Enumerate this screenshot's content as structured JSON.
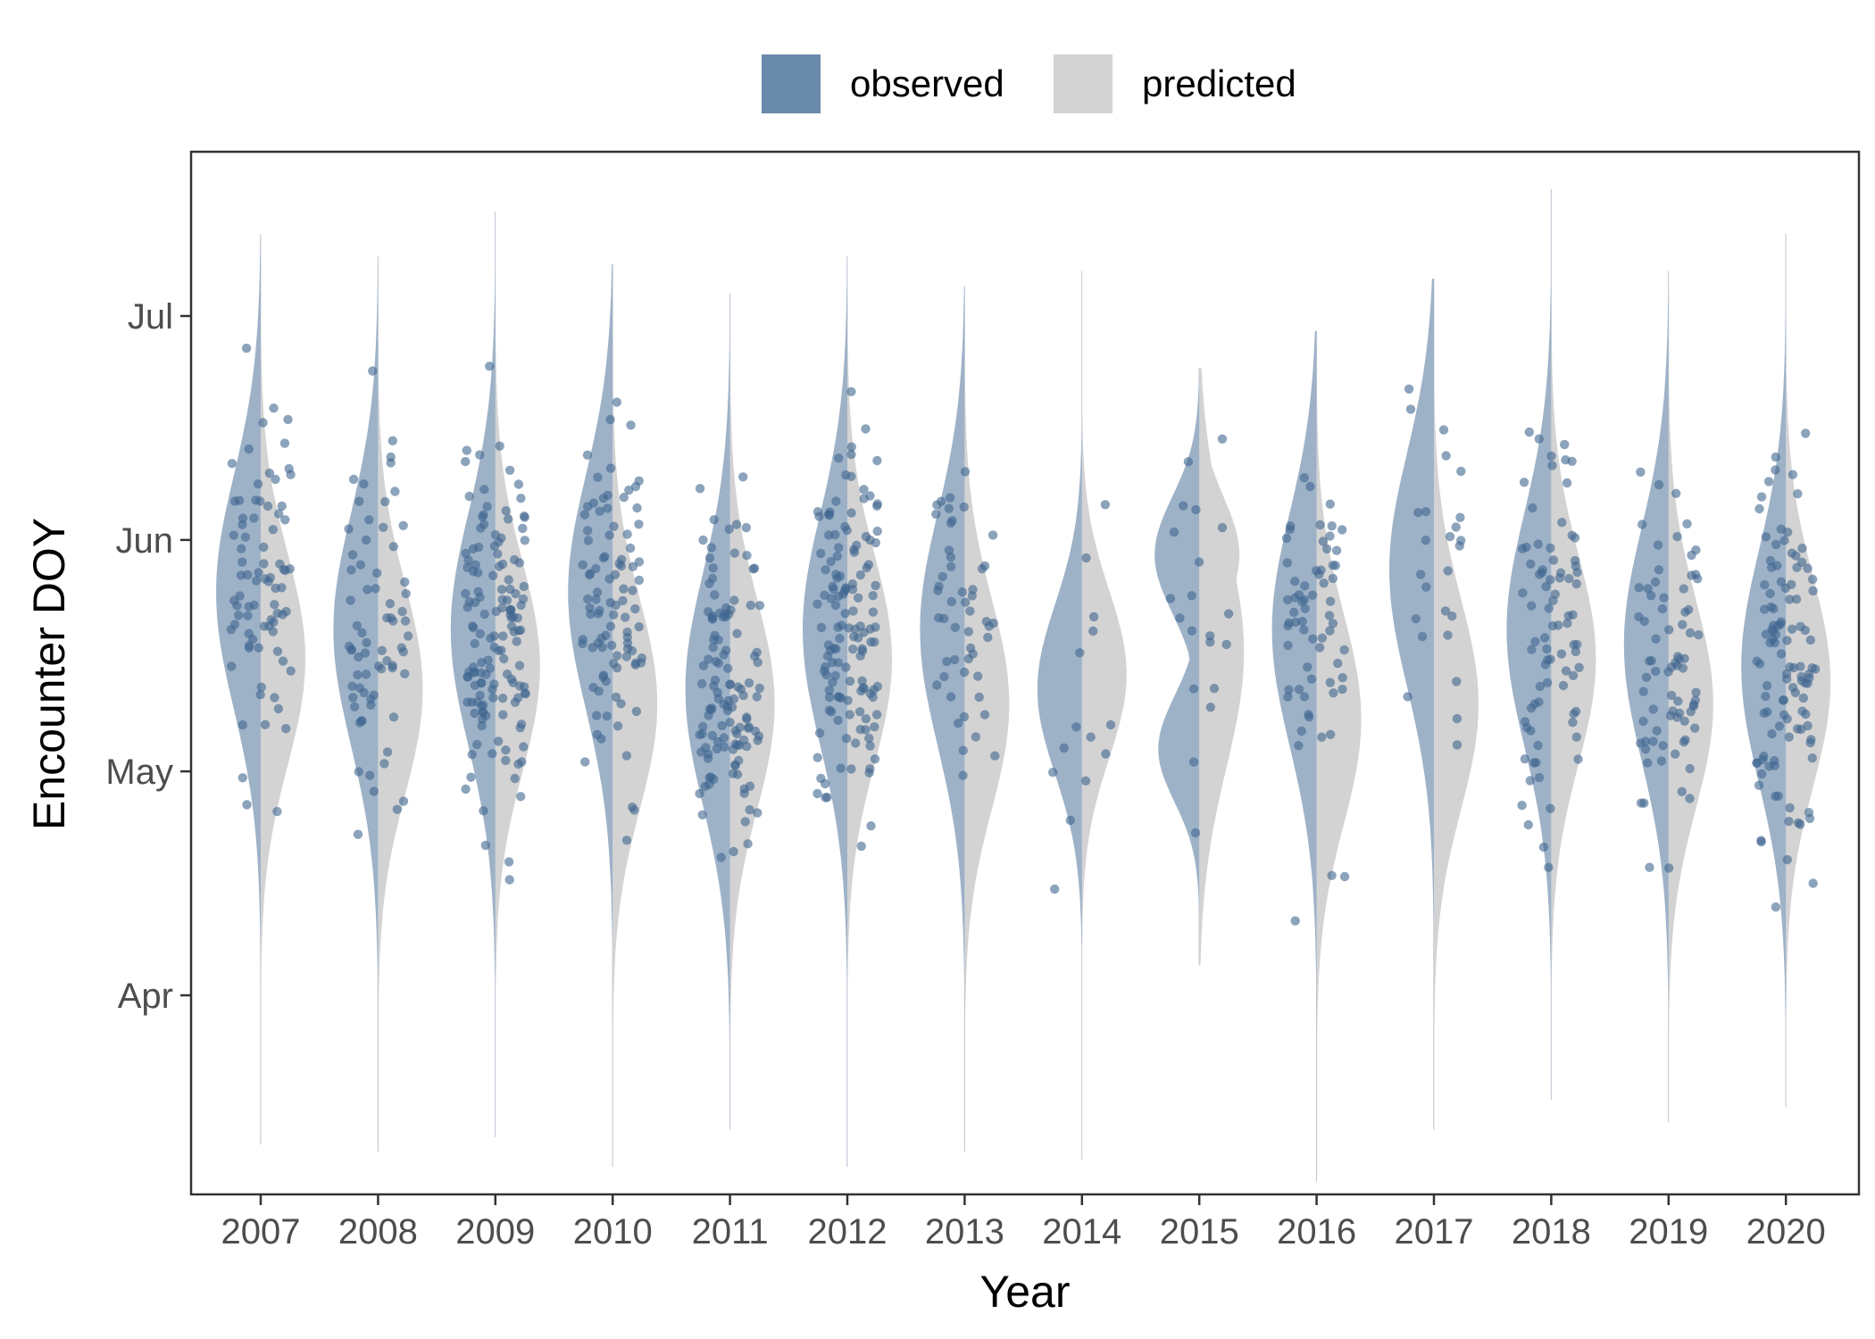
{
  "legend": {
    "items": [
      {
        "label": "observed",
        "color": "#4f7399"
      },
      {
        "label": "predicted",
        "color": "#d3d3d3"
      }
    ]
  },
  "chart_data": {
    "type": "violin",
    "xlabel": "Year",
    "ylabel": "Encounter DOY",
    "categories": [
      "2007",
      "2008",
      "2009",
      "2010",
      "2011",
      "2012",
      "2013",
      "2014",
      "2015",
      "2016",
      "2017",
      "2018",
      "2019",
      "2020"
    ],
    "y_axis": {
      "ticks": [
        {
          "label": "Apr",
          "doy": 91
        },
        {
          "label": "May",
          "doy": 121
        },
        {
          "label": "Jun",
          "doy": 152
        },
        {
          "label": "Jul",
          "doy": 182
        }
      ],
      "range": [
        65,
        205
      ]
    },
    "series": [
      {
        "name": "observed",
        "side": "left",
        "color": "#4f7399",
        "violins": [
          {
            "year": "2007",
            "min": 71,
            "max": 193,
            "peak": 145
          },
          {
            "year": "2008",
            "min": 70,
            "max": 190,
            "peak": 140
          },
          {
            "year": "2009",
            "min": 72,
            "max": 196,
            "peak": 140
          },
          {
            "year": "2010",
            "min": 68,
            "max": 189,
            "peak": 145
          },
          {
            "year": "2011",
            "min": 73,
            "max": 185,
            "peak": 132
          },
          {
            "year": "2012",
            "min": 68,
            "max": 190,
            "peak": 140
          },
          {
            "year": "2013",
            "min": 70,
            "max": 186,
            "peak": 140
          },
          {
            "year": "2014",
            "min": 69,
            "max": 188,
            "peak": 132
          },
          {
            "year": "2015",
            "min": null,
            "max": null,
            "peak": 145
          },
          {
            "year": "2016",
            "min": 66,
            "max": 180,
            "peak": 140
          },
          {
            "year": "2017",
            "min": 73,
            "max": 187,
            "peak": 148
          },
          {
            "year": "2018",
            "min": 77,
            "max": 199,
            "peak": 140
          },
          {
            "year": "2019",
            "min": 74,
            "max": 188,
            "peak": 138
          },
          {
            "year": "2020",
            "min": 76,
            "max": 193,
            "peak": 135
          }
        ]
      },
      {
        "name": "predicted",
        "side": "right",
        "color": "#d3d3d3",
        "violins": [
          {
            "year": "2007",
            "min": 71,
            "max": 193,
            "peak": 136
          },
          {
            "year": "2008",
            "min": 70,
            "max": 190,
            "peak": 132
          },
          {
            "year": "2009",
            "min": 72,
            "max": 196,
            "peak": 135
          },
          {
            "year": "2010",
            "min": 68,
            "max": 189,
            "peak": 130
          },
          {
            "year": "2011",
            "min": 73,
            "max": 185,
            "peak": 130
          },
          {
            "year": "2012",
            "min": 68,
            "max": 190,
            "peak": 136
          },
          {
            "year": "2013",
            "min": 70,
            "max": 186,
            "peak": 130
          },
          {
            "year": "2014",
            "min": 69,
            "max": 188,
            "peak": 134
          },
          {
            "year": "2015",
            "min": null,
            "max": null,
            "peak": 140
          },
          {
            "year": "2016",
            "min": 66,
            "max": 180,
            "peak": 128
          },
          {
            "year": "2017",
            "min": 73,
            "max": 187,
            "peak": 130
          },
          {
            "year": "2018",
            "min": 77,
            "max": 199,
            "peak": 136
          },
          {
            "year": "2019",
            "min": 74,
            "max": 188,
            "peak": 130
          },
          {
            "year": "2020",
            "min": 76,
            "max": 193,
            "peak": 133
          }
        ]
      }
    ],
    "observed_point_counts": [
      80,
      70,
      140,
      95,
      120,
      135,
      50,
      14,
      20,
      65,
      25,
      80,
      75,
      110
    ],
    "grid": false,
    "legend_position": "top"
  }
}
